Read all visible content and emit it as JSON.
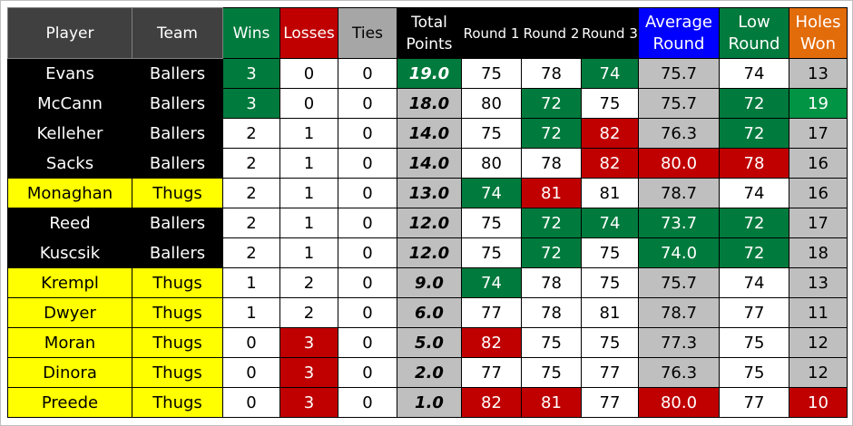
{
  "headers": [
    "Player",
    "Team",
    "Wins",
    "Losses",
    "Ties",
    "Total Points",
    "Round 1",
    "Round 2",
    "Round 3",
    "Average Round",
    "Low Round",
    "Holes Won"
  ],
  "colors": {
    "green": "#007a3d",
    "light_green": "#009444",
    "red": "#c00000",
    "silver": "#bfbfbf",
    "yellow": "#ffff00",
    "black": "#000000",
    "blue": "#0000ff",
    "orange": "#e26b0a"
  },
  "rows": [
    {
      "player": "Evans",
      "team": "Ballers",
      "values": [
        "3",
        "0",
        "0",
        "19.0",
        "75",
        "78",
        "74",
        "75.7",
        "74",
        "13"
      ],
      "fills": [
        "g",
        "w",
        "w",
        "g",
        "w",
        "w",
        "g",
        "s",
        "w",
        "s"
      ]
    },
    {
      "player": "McCann",
      "team": "Ballers",
      "values": [
        "3",
        "0",
        "0",
        "18.0",
        "80",
        "72",
        "75",
        "75.7",
        "72",
        "19"
      ],
      "fills": [
        "g",
        "w",
        "w",
        "s",
        "w",
        "g",
        "w",
        "s",
        "g",
        "G"
      ]
    },
    {
      "player": "Kelleher",
      "team": "Ballers",
      "values": [
        "2",
        "1",
        "0",
        "14.0",
        "75",
        "72",
        "82",
        "76.3",
        "72",
        "17"
      ],
      "fills": [
        "w",
        "w",
        "w",
        "s",
        "w",
        "g",
        "r",
        "s",
        "g",
        "s"
      ]
    },
    {
      "player": "Sacks",
      "team": "Ballers",
      "values": [
        "2",
        "1",
        "0",
        "14.0",
        "80",
        "78",
        "82",
        "80.0",
        "78",
        "16"
      ],
      "fills": [
        "w",
        "w",
        "w",
        "s",
        "w",
        "w",
        "r",
        "r",
        "r",
        "s"
      ]
    },
    {
      "player": "Monaghan",
      "team": "Thugs",
      "values": [
        "2",
        "1",
        "0",
        "13.0",
        "74",
        "81",
        "81",
        "78.7",
        "74",
        "16"
      ],
      "fills": [
        "w",
        "w",
        "w",
        "s",
        "g",
        "r",
        "w",
        "s",
        "w",
        "s"
      ]
    },
    {
      "player": "Reed",
      "team": "Ballers",
      "values": [
        "2",
        "1",
        "0",
        "12.0",
        "75",
        "72",
        "74",
        "73.7",
        "72",
        "17"
      ],
      "fills": [
        "w",
        "w",
        "w",
        "s",
        "w",
        "g",
        "g",
        "g",
        "g",
        "s"
      ]
    },
    {
      "player": "Kuscsik",
      "team": "Ballers",
      "values": [
        "2",
        "1",
        "0",
        "12.0",
        "75",
        "72",
        "75",
        "74.0",
        "72",
        "18"
      ],
      "fills": [
        "w",
        "w",
        "w",
        "s",
        "w",
        "g",
        "w",
        "g",
        "g",
        "s"
      ]
    },
    {
      "player": "Krempl",
      "team": "Thugs",
      "values": [
        "1",
        "2",
        "0",
        "9.0",
        "74",
        "78",
        "75",
        "75.7",
        "74",
        "13"
      ],
      "fills": [
        "w",
        "w",
        "w",
        "s",
        "g",
        "w",
        "w",
        "s",
        "w",
        "s"
      ]
    },
    {
      "player": "Dwyer",
      "team": "Thugs",
      "values": [
        "1",
        "2",
        "0",
        "6.0",
        "77",
        "78",
        "81",
        "78.7",
        "77",
        "11"
      ],
      "fills": [
        "w",
        "w",
        "w",
        "s",
        "w",
        "w",
        "w",
        "s",
        "w",
        "s"
      ]
    },
    {
      "player": "Moran",
      "team": "Thugs",
      "values": [
        "0",
        "3",
        "0",
        "5.0",
        "82",
        "75",
        "75",
        "77.3",
        "75",
        "12"
      ],
      "fills": [
        "w",
        "r",
        "w",
        "s",
        "r",
        "w",
        "w",
        "s",
        "w",
        "s"
      ]
    },
    {
      "player": "Dinora",
      "team": "Thugs",
      "values": [
        "0",
        "3",
        "0",
        "2.0",
        "77",
        "75",
        "77",
        "76.3",
        "75",
        "12"
      ],
      "fills": [
        "w",
        "r",
        "w",
        "s",
        "w",
        "w",
        "w",
        "s",
        "w",
        "s"
      ]
    },
    {
      "player": "Preede",
      "team": "Thugs",
      "values": [
        "0",
        "3",
        "0",
        "1.0",
        "82",
        "81",
        "77",
        "80.0",
        "77",
        "10"
      ],
      "fills": [
        "w",
        "r",
        "w",
        "s",
        "r",
        "r",
        "w",
        "r",
        "w",
        "r"
      ]
    }
  ]
}
